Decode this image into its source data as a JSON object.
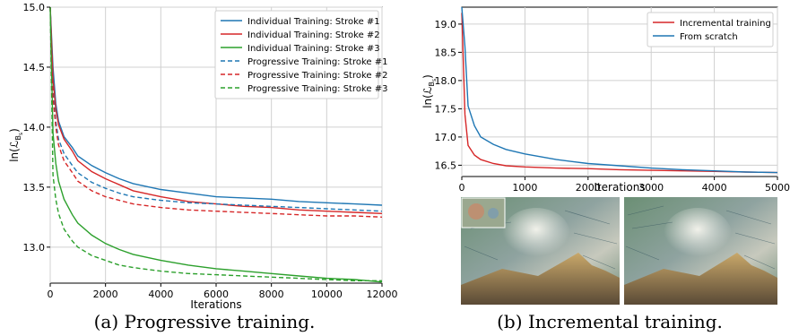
{
  "captions": {
    "left": "(a) Progressive training.",
    "right": "(b) Incremental training."
  },
  "colors": {
    "blue": "#1f77b4",
    "red": "#d62728",
    "green": "#2ca02c"
  },
  "chart_data": [
    {
      "type": "line",
      "xlabel": "Iterations",
      "ylabel": "ln(ℒ_{B_s})",
      "xlim": [
        0,
        12000
      ],
      "ylim": [
        12.7,
        15.0
      ],
      "xticks": [
        "0",
        "2000",
        "4000",
        "6000",
        "8000",
        "10000",
        "12000"
      ],
      "yticks": [
        "13.0",
        "13.5",
        "14.0",
        "14.5",
        "15.0"
      ],
      "grid": true,
      "legend_position": "top-right",
      "series": [
        {
          "name": "Individual Training: Stroke #1",
          "color": "blue",
          "dash": false,
          "x": [
            0,
            100,
            200,
            300,
            500,
            800,
            1000,
            1500,
            2000,
            2500,
            3000,
            4000,
            5000,
            6000,
            7000,
            8000,
            9000,
            10000,
            11000,
            12000
          ],
          "y": [
            15.0,
            14.5,
            14.2,
            14.05,
            13.92,
            13.83,
            13.76,
            13.68,
            13.62,
            13.57,
            13.53,
            13.48,
            13.45,
            13.42,
            13.41,
            13.4,
            13.38,
            13.37,
            13.36,
            13.35
          ]
        },
        {
          "name": "Individual Training: Stroke #2",
          "color": "red",
          "dash": false,
          "x": [
            0,
            100,
            200,
            300,
            500,
            800,
            1000,
            1500,
            2000,
            2500,
            3000,
            4000,
            5000,
            6000,
            7000,
            8000,
            9000,
            10000,
            11000,
            12000
          ],
          "y": [
            15.0,
            14.4,
            14.15,
            14.02,
            13.9,
            13.8,
            13.72,
            13.63,
            13.57,
            13.52,
            13.47,
            13.42,
            13.38,
            13.36,
            13.34,
            13.33,
            13.31,
            13.3,
            13.29,
            13.28
          ]
        },
        {
          "name": "Individual Training: Stroke #3",
          "color": "green",
          "dash": false,
          "x": [
            0,
            100,
            200,
            300,
            500,
            800,
            1000,
            1500,
            2000,
            2500,
            3000,
            4000,
            5000,
            6000,
            7000,
            8000,
            9000,
            10000,
            11000,
            12000
          ],
          "y": [
            15.0,
            13.95,
            13.7,
            13.55,
            13.4,
            13.27,
            13.2,
            13.1,
            13.03,
            12.98,
            12.94,
            12.89,
            12.85,
            12.82,
            12.8,
            12.78,
            12.76,
            12.74,
            12.73,
            12.71
          ]
        },
        {
          "name": "Progressive Training: Stroke #1",
          "color": "blue",
          "dash": true,
          "x": [
            0,
            100,
            200,
            300,
            500,
            800,
            1000,
            1500,
            2000,
            2500,
            3000,
            4000,
            5000,
            6000,
            7000,
            8000,
            9000,
            10000,
            11000,
            12000
          ],
          "y": [
            15.0,
            14.3,
            14.05,
            13.9,
            13.78,
            13.68,
            13.62,
            13.54,
            13.49,
            13.45,
            13.42,
            13.39,
            13.37,
            13.36,
            13.35,
            13.34,
            13.33,
            13.32,
            13.31,
            13.3
          ]
        },
        {
          "name": "Progressive Training: Stroke #2",
          "color": "red",
          "dash": true,
          "x": [
            0,
            100,
            200,
            300,
            500,
            800,
            1000,
            1500,
            2000,
            2500,
            3000,
            4000,
            5000,
            6000,
            7000,
            8000,
            9000,
            10000,
            11000,
            12000
          ],
          "y": [
            15.0,
            14.25,
            14.0,
            13.85,
            13.72,
            13.62,
            13.55,
            13.47,
            13.42,
            13.39,
            13.36,
            13.33,
            13.31,
            13.3,
            13.29,
            13.28,
            13.27,
            13.26,
            13.26,
            13.25
          ]
        },
        {
          "name": "Progressive Training: Stroke #3",
          "color": "green",
          "dash": true,
          "x": [
            0,
            100,
            200,
            300,
            500,
            800,
            1000,
            1500,
            2000,
            2500,
            3000,
            4000,
            5000,
            6000,
            7000,
            8000,
            9000,
            10000,
            11000,
            12000
          ],
          "y": [
            15.0,
            13.6,
            13.4,
            13.28,
            13.15,
            13.05,
            13.0,
            12.93,
            12.89,
            12.85,
            12.83,
            12.8,
            12.78,
            12.77,
            12.76,
            12.75,
            12.74,
            12.73,
            12.72,
            12.72
          ]
        }
      ]
    },
    {
      "type": "line",
      "xlabel": "Iterations",
      "ylabel": "ln(ℒ_{B_s})",
      "xlim": [
        0,
        5000
      ],
      "ylim": [
        16.3,
        19.3
      ],
      "xticks": [
        "0",
        "1000",
        "2000",
        "3000",
        "4000",
        "5000"
      ],
      "yticks": [
        "16.5",
        "17.0",
        "17.5",
        "18.0",
        "18.5",
        "19.0"
      ],
      "grid": true,
      "legend_position": "top-right",
      "series": [
        {
          "name": "Incremental training",
          "color": "red",
          "dash": false,
          "x": [
            0,
            50,
            100,
            200,
            300,
            500,
            700,
            1000,
            1500,
            2000,
            2500,
            3000,
            3500,
            4000,
            4500,
            5000
          ],
          "y": [
            19.2,
            17.4,
            16.85,
            16.68,
            16.6,
            16.53,
            16.49,
            16.47,
            16.45,
            16.44,
            16.42,
            16.41,
            16.4,
            16.39,
            16.38,
            16.37
          ]
        },
        {
          "name": "From scratch",
          "color": "blue",
          "dash": false,
          "x": [
            0,
            50,
            100,
            200,
            300,
            500,
            700,
            1000,
            1500,
            2000,
            2500,
            3000,
            3500,
            4000,
            4500,
            5000
          ],
          "y": [
            19.3,
            18.6,
            17.55,
            17.2,
            17.0,
            16.87,
            16.78,
            16.7,
            16.6,
            16.53,
            16.49,
            16.45,
            16.42,
            16.4,
            16.38,
            16.37
          ]
        }
      ]
    }
  ]
}
